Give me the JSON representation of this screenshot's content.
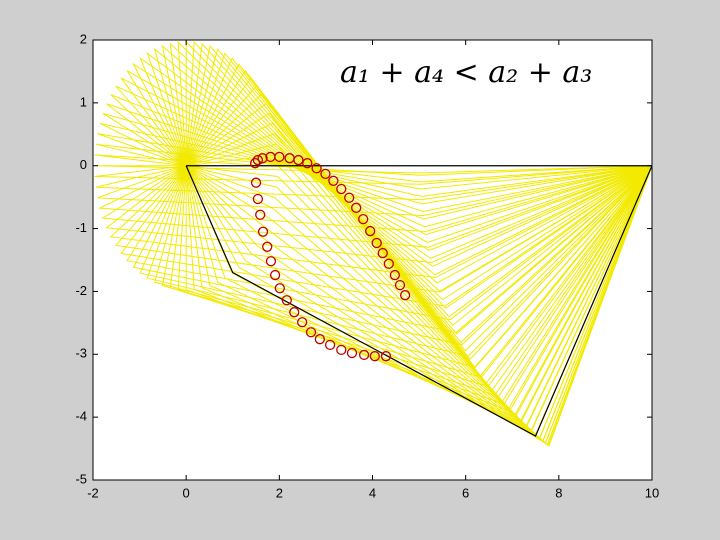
{
  "chart_data": {
    "type": "scatter",
    "annotation": "a₁ + a₄ < a₂ + a₃",
    "xlim": [
      -2,
      10
    ],
    "ylim": [
      -5,
      2
    ],
    "xticks": [
      -2,
      0,
      2,
      4,
      6,
      8,
      10
    ],
    "yticks": [
      -5,
      -4,
      -3,
      -2,
      -1,
      0,
      1,
      2
    ],
    "mechanism_color": "#f2ea00",
    "series": [
      {
        "mode": "line",
        "color": "#000000",
        "x": [
          0,
          1,
          7.5,
          10,
          0
        ],
        "y": [
          0,
          -1.7,
          -4.3,
          0,
          0
        ]
      },
      {
        "mode": "marker",
        "color": "#c00000",
        "x": [
          4.7,
          4.59,
          4.48,
          4.35,
          4.22,
          4.09,
          3.95,
          3.8,
          3.65,
          3.5,
          3.33,
          3.16,
          2.99,
          2.8,
          2.6,
          2.41,
          2.22,
          2.0,
          1.81,
          1.64,
          1.54,
          1.48,
          1.5,
          1.54,
          1.59,
          1.65,
          1.74,
          1.82,
          1.91,
          2.01,
          2.16,
          2.32,
          2.49,
          2.68,
          2.87,
          3.09,
          3.33,
          3.56,
          3.82,
          4.05,
          4.29
        ],
        "y": [
          -2.06,
          -1.9,
          -1.74,
          -1.56,
          -1.39,
          -1.23,
          -1.04,
          -0.85,
          -0.67,
          -0.51,
          -0.37,
          -0.24,
          -0.13,
          -0.04,
          0.04,
          0.09,
          0.12,
          0.14,
          0.14,
          0.12,
          0.09,
          0.04,
          -0.27,
          -0.53,
          -0.78,
          -1.05,
          -1.29,
          -1.52,
          -1.74,
          -1.95,
          -2.14,
          -2.33,
          -2.49,
          -2.65,
          -2.76,
          -2.85,
          -2.93,
          -2.98,
          -3.01,
          -3.03,
          -3.03
        ]
      }
    ]
  }
}
